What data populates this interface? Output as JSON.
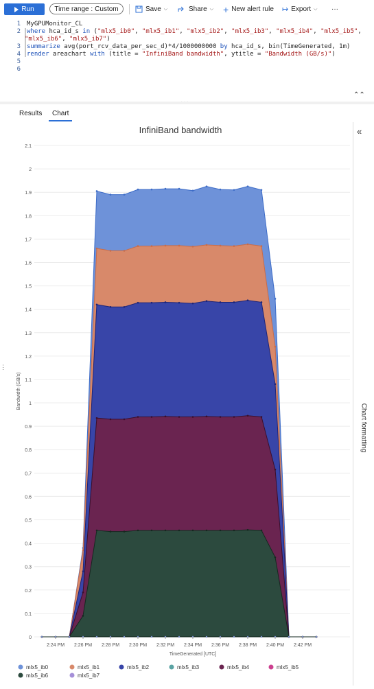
{
  "toolbar": {
    "run_label": "Run",
    "time_range_label": "Time range :",
    "time_range_value": "Custom",
    "save_label": "Save",
    "share_label": "Share",
    "new_alert_label": "New alert rule",
    "export_label": "Export",
    "more_label": "···"
  },
  "editor": {
    "line_numbers": [
      "1",
      "2",
      "3",
      "4",
      "5",
      "6"
    ],
    "current_line": "4"
  },
  "tabs": {
    "results": "Results",
    "chart": "Chart",
    "active": "Chart"
  },
  "side_panel": {
    "label": "Chart formatting"
  },
  "chart_data": {
    "type": "area",
    "stacked": true,
    "title": "InfiniBand bandwidth",
    "xlabel": "TimeGenerated [UTC]",
    "ylabel": "Bandwidth (GB/s)",
    "ylim": [
      0,
      2.1
    ],
    "yticks": [
      "0",
      "0.1",
      "0.2",
      "0.3",
      "0.4",
      "0.5",
      "0.6",
      "0.7",
      "0.8",
      "0.9",
      "1",
      "1.1",
      "1.2",
      "1.3",
      "1.4",
      "1.5",
      "1.6",
      "1.7",
      "1.8",
      "1.9",
      "2",
      "2.1"
    ],
    "xticks": [
      "2:24 PM",
      "2:26 PM",
      "2:28 PM",
      "2:30 PM",
      "2:32 PM",
      "2:34 PM",
      "2:36 PM",
      "2:38 PM",
      "2:40 PM",
      "2:42 PM"
    ],
    "x": [
      "2:23 PM",
      "2:24 PM",
      "2:25 PM",
      "2:26 PM",
      "2:27 PM",
      "2:28 PM",
      "2:29 PM",
      "2:30 PM",
      "2:31 PM",
      "2:32 PM",
      "2:33 PM",
      "2:34 PM",
      "2:35 PM",
      "2:36 PM",
      "2:37 PM",
      "2:38 PM",
      "2:39 PM",
      "2:40 PM",
      "2:41 PM",
      "2:42 PM",
      "2:43 PM"
    ],
    "cumulative": {
      "mlx5_ib6": [
        0,
        0,
        0,
        0.09,
        0.455,
        0.45,
        0.45,
        0.455,
        0.455,
        0.455,
        0.455,
        0.455,
        0.455,
        0.455,
        0.455,
        0.457,
        0.455,
        0.34,
        0,
        0,
        0
      ],
      "mlx5_ib4": [
        0,
        0,
        0,
        0.19,
        0.935,
        0.93,
        0.93,
        0.94,
        0.94,
        0.942,
        0.94,
        0.94,
        0.942,
        0.94,
        0.94,
        0.945,
        0.94,
        0.715,
        0,
        0,
        0
      ],
      "mlx5_ib2": [
        0,
        0,
        0,
        0.28,
        1.42,
        1.41,
        1.41,
        1.428,
        1.428,
        1.43,
        1.428,
        1.425,
        1.435,
        1.43,
        1.43,
        1.438,
        1.43,
        1.08,
        0,
        0,
        0
      ],
      "mlx5_ib1": [
        0,
        0,
        0,
        0.37,
        1.66,
        1.65,
        1.65,
        1.67,
        1.67,
        1.672,
        1.672,
        1.668,
        1.675,
        1.672,
        1.67,
        1.678,
        1.67,
        1.24,
        0,
        0,
        0
      ],
      "mlx5_ib0": [
        0,
        0,
        0,
        0.38,
        1.905,
        1.89,
        1.89,
        1.912,
        1.912,
        1.915,
        1.915,
        1.907,
        1.925,
        1.912,
        1.91,
        1.925,
        1.91,
        1.445,
        0,
        0,
        0
      ]
    },
    "series": [
      {
        "name": "mlx5_ib0",
        "color": "#6e92d9"
      },
      {
        "name": "mlx5_ib1",
        "color": "#d8896a"
      },
      {
        "name": "mlx5_ib2",
        "color": "#3845a8"
      },
      {
        "name": "mlx5_ib3",
        "color": "#5aa3a3"
      },
      {
        "name": "mlx5_ib4",
        "color": "#6a2450"
      },
      {
        "name": "mlx5_ib5",
        "color": "#cc3f8f"
      },
      {
        "name": "mlx5_ib6",
        "color": "#2c4a3e"
      },
      {
        "name": "mlx5_ib7",
        "color": "#a58fd8"
      }
    ],
    "legend_position": "bottom"
  }
}
